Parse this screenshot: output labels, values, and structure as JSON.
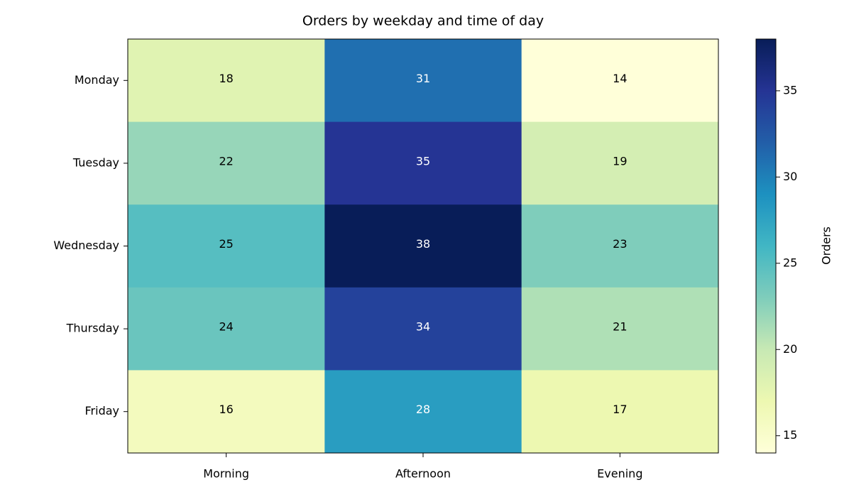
{
  "chart_data": {
    "type": "heatmap",
    "title": "Orders by weekday and time of day",
    "x_categories": [
      "Morning",
      "Afternoon",
      "Evening"
    ],
    "y_categories": [
      "Monday",
      "Tuesday",
      "Wednesday",
      "Thursday",
      "Friday"
    ],
    "values": [
      [
        18,
        31,
        14
      ],
      [
        22,
        35,
        19
      ],
      [
        25,
        38,
        23
      ],
      [
        24,
        34,
        21
      ],
      [
        16,
        28,
        17
      ]
    ],
    "colormap": "YlGnBu",
    "colorbar_label": "Orders",
    "clim": [
      14,
      38
    ],
    "cticks": [
      15,
      20,
      25,
      30,
      35
    ]
  }
}
